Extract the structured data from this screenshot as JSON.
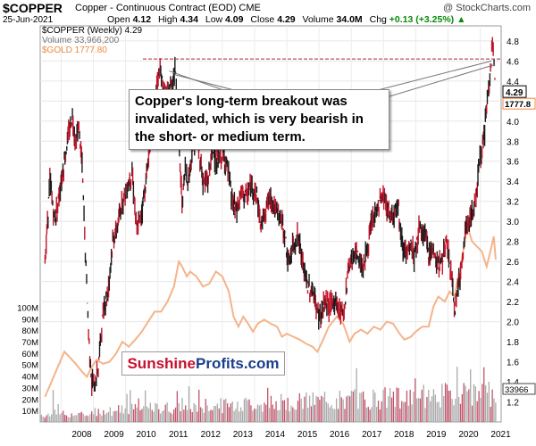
{
  "header": {
    "symbol": "$COPPER",
    "name": "Copper - Continuous Contract (EOD)",
    "exchange": "CME",
    "watermark": "@ StockCharts.com",
    "date": "25-Jun-2021",
    "open_label": "Open",
    "open": "4.12",
    "high_label": "High",
    "high": "4.34",
    "low_label": "Low",
    "low": "4.09",
    "close_label": "Close",
    "close": "4.29",
    "volume_label": "Volume",
    "volume": "34.0M",
    "chg_label": "Chg",
    "chg": "+0.13 (+3.25%)",
    "chg_arrow": "▲"
  },
  "legend": {
    "copper": "$COPPER (Weekly) 4.29",
    "volume": "Volume 33,966,200",
    "gold": "$GOLD 1777.80"
  },
  "annotation": "Copper's long-term breakout was invalidated, which is very bearish in the short- or medium term.",
  "logo": {
    "part1": "Sunshine",
    "part2": "Profits.com"
  },
  "colors": {
    "gold": "#f4b48a",
    "candle": "#1a1a1a",
    "candle_down": "#c0142a",
    "volume": "#aaaaaa",
    "volume_down": "#c2556a",
    "level": "#b0203a",
    "close_badge": "#000000",
    "gold_badge": "#f0873c"
  },
  "chart_data": {
    "type": "line",
    "title": "$COPPER Copper - Continuous Contract (EOD) CME",
    "x_ticks": [
      "2008",
      "2009",
      "2010",
      "2011",
      "2012",
      "2013",
      "2014",
      "2015",
      "2016",
      "2017",
      "2018",
      "2019",
      "2020",
      "2021"
    ],
    "y_ticks": [
      "2.0",
      "2.2",
      "2.4",
      "2.6",
      "2.8",
      "3.0",
      "3.2",
      "3.4",
      "3.6",
      "3.8",
      "4.0",
      "4.2",
      "4.4",
      "4.6",
      "4.8"
    ],
    "volume_ticks": [
      "10M",
      "20M",
      "30M",
      "40M",
      "50M",
      "60M",
      "70M",
      "80M",
      "90M",
      "100M"
    ],
    "lower_right_ticks": [
      "1.2",
      "1.4",
      "1.6",
      "1.8"
    ],
    "ylim": [
      1.0,
      4.95
    ],
    "volume_ylim": [
      0,
      105
    ],
    "resistance_level": 4.62,
    "last_copper_badge": "4.29",
    "last_gold_badge": "1777.8",
    "last_volume_badge": "33966",
    "series": [
      {
        "name": "$COPPER (Weekly)",
        "points": [
          [
            2007.5,
            2.6
          ],
          [
            2007.65,
            3.4
          ],
          [
            2007.8,
            3.0
          ],
          [
            2007.95,
            3.3
          ],
          [
            2008.1,
            3.6
          ],
          [
            2008.25,
            3.9
          ],
          [
            2008.35,
            4.05
          ],
          [
            2008.45,
            3.8
          ],
          [
            2008.55,
            3.95
          ],
          [
            2008.65,
            3.55
          ],
          [
            2008.75,
            2.7
          ],
          [
            2008.85,
            1.9
          ],
          [
            2008.95,
            1.4
          ],
          [
            2009.05,
            1.35
          ],
          [
            2009.15,
            1.55
          ],
          [
            2009.3,
            2.1
          ],
          [
            2009.45,
            2.3
          ],
          [
            2009.6,
            2.8
          ],
          [
            2009.75,
            2.95
          ],
          [
            2009.9,
            3.2
          ],
          [
            2010.05,
            3.35
          ],
          [
            2010.2,
            3.5
          ],
          [
            2010.35,
            2.9
          ],
          [
            2010.5,
            3.1
          ],
          [
            2010.65,
            3.45
          ],
          [
            2010.8,
            3.9
          ],
          [
            2010.95,
            4.3
          ],
          [
            2011.05,
            4.5
          ],
          [
            2011.15,
            4.35
          ],
          [
            2011.3,
            4.25
          ],
          [
            2011.45,
            4.4
          ],
          [
            2011.55,
            4.5
          ],
          [
            2011.65,
            3.8
          ],
          [
            2011.75,
            3.2
          ],
          [
            2011.85,
            3.5
          ],
          [
            2011.95,
            3.4
          ],
          [
            2012.1,
            3.8
          ],
          [
            2012.25,
            3.8
          ],
          [
            2012.4,
            3.4
          ],
          [
            2012.55,
            3.4
          ],
          [
            2012.7,
            3.75
          ],
          [
            2012.85,
            3.55
          ],
          [
            2013.0,
            3.7
          ],
          [
            2013.15,
            3.55
          ],
          [
            2013.3,
            3.2
          ],
          [
            2013.45,
            3.1
          ],
          [
            2013.6,
            3.3
          ],
          [
            2013.75,
            3.25
          ],
          [
            2013.9,
            3.35
          ],
          [
            2014.05,
            3.3
          ],
          [
            2014.2,
            2.95
          ],
          [
            2014.35,
            3.15
          ],
          [
            2014.5,
            3.25
          ],
          [
            2014.65,
            3.1
          ],
          [
            2014.8,
            3.05
          ],
          [
            2014.95,
            2.85
          ],
          [
            2015.05,
            2.55
          ],
          [
            2015.2,
            2.75
          ],
          [
            2015.35,
            2.85
          ],
          [
            2015.5,
            2.55
          ],
          [
            2015.65,
            2.35
          ],
          [
            2015.8,
            2.3
          ],
          [
            2015.95,
            2.1
          ],
          [
            2016.05,
            2.05
          ],
          [
            2016.2,
            2.2
          ],
          [
            2016.35,
            2.15
          ],
          [
            2016.5,
            2.2
          ],
          [
            2016.65,
            2.1
          ],
          [
            2016.8,
            2.15
          ],
          [
            2016.9,
            2.55
          ],
          [
            2017.05,
            2.65
          ],
          [
            2017.2,
            2.65
          ],
          [
            2017.35,
            2.55
          ],
          [
            2017.5,
            2.7
          ],
          [
            2017.65,
            3.0
          ],
          [
            2017.8,
            3.1
          ],
          [
            2017.95,
            3.25
          ],
          [
            2018.05,
            3.2
          ],
          [
            2018.2,
            3.05
          ],
          [
            2018.35,
            3.1
          ],
          [
            2018.45,
            3.2
          ],
          [
            2018.55,
            2.8
          ],
          [
            2018.7,
            2.65
          ],
          [
            2018.85,
            2.75
          ],
          [
            2018.95,
            2.65
          ],
          [
            2019.1,
            2.9
          ],
          [
            2019.25,
            2.9
          ],
          [
            2019.4,
            2.7
          ],
          [
            2019.55,
            2.7
          ],
          [
            2019.7,
            2.55
          ],
          [
            2019.85,
            2.65
          ],
          [
            2019.95,
            2.8
          ],
          [
            2020.05,
            2.6
          ],
          [
            2020.15,
            2.3
          ],
          [
            2020.22,
            2.1
          ],
          [
            2020.3,
            2.35
          ],
          [
            2020.45,
            2.6
          ],
          [
            2020.55,
            2.95
          ],
          [
            2020.7,
            3.05
          ],
          [
            2020.85,
            3.15
          ],
          [
            2020.95,
            3.55
          ],
          [
            2021.1,
            3.8
          ],
          [
            2021.2,
            4.1
          ],
          [
            2021.3,
            4.45
          ],
          [
            2021.38,
            4.75
          ],
          [
            2021.43,
            4.55
          ],
          [
            2021.48,
            4.29
          ]
        ]
      },
      {
        "name": "$GOLD",
        "points": [
          [
            2007.5,
            1.25
          ],
          [
            2007.7,
            1.4
          ],
          [
            2007.9,
            1.55
          ],
          [
            2008.1,
            1.7
          ],
          [
            2008.25,
            1.65
          ],
          [
            2008.45,
            1.58
          ],
          [
            2008.65,
            1.5
          ],
          [
            2008.8,
            1.45
          ],
          [
            2008.95,
            1.55
          ],
          [
            2009.1,
            1.62
          ],
          [
            2009.3,
            1.58
          ],
          [
            2009.5,
            1.6
          ],
          [
            2009.7,
            1.68
          ],
          [
            2009.9,
            1.8
          ],
          [
            2010.1,
            1.75
          ],
          [
            2010.3,
            1.82
          ],
          [
            2010.5,
            1.9
          ],
          [
            2010.7,
            2.0
          ],
          [
            2010.9,
            2.1
          ],
          [
            2011.1,
            2.1
          ],
          [
            2011.3,
            2.2
          ],
          [
            2011.5,
            2.35
          ],
          [
            2011.65,
            2.6
          ],
          [
            2011.75,
            2.55
          ],
          [
            2011.9,
            2.45
          ],
          [
            2012.0,
            2.5
          ],
          [
            2012.2,
            2.45
          ],
          [
            2012.4,
            2.35
          ],
          [
            2012.6,
            2.38
          ],
          [
            2012.8,
            2.5
          ],
          [
            2013.0,
            2.45
          ],
          [
            2013.2,
            2.3
          ],
          [
            2013.35,
            2.05
          ],
          [
            2013.5,
            1.95
          ],
          [
            2013.65,
            2.05
          ],
          [
            2013.8,
            1.98
          ],
          [
            2013.95,
            1.9
          ],
          [
            2014.1,
            1.98
          ],
          [
            2014.3,
            2.02
          ],
          [
            2014.5,
            1.98
          ],
          [
            2014.7,
            1.95
          ],
          [
            2014.85,
            1.85
          ],
          [
            2015.0,
            1.88
          ],
          [
            2015.2,
            1.85
          ],
          [
            2015.4,
            1.82
          ],
          [
            2015.6,
            1.78
          ],
          [
            2015.8,
            1.75
          ],
          [
            2015.95,
            1.7
          ],
          [
            2016.1,
            1.8
          ],
          [
            2016.3,
            1.95
          ],
          [
            2016.55,
            2.05
          ],
          [
            2016.75,
            1.98
          ],
          [
            2016.95,
            1.8
          ],
          [
            2017.1,
            1.88
          ],
          [
            2017.3,
            1.92
          ],
          [
            2017.5,
            1.88
          ],
          [
            2017.7,
            1.95
          ],
          [
            2017.9,
            1.92
          ],
          [
            2018.1,
            2.0
          ],
          [
            2018.3,
            1.98
          ],
          [
            2018.5,
            1.88
          ],
          [
            2018.65,
            1.82
          ],
          [
            2018.85,
            1.85
          ],
          [
            2019.0,
            1.9
          ],
          [
            2019.2,
            1.95
          ],
          [
            2019.4,
            1.95
          ],
          [
            2019.55,
            2.15
          ],
          [
            2019.7,
            2.25
          ],
          [
            2019.9,
            2.2
          ],
          [
            2020.05,
            2.3
          ],
          [
            2020.2,
            2.25
          ],
          [
            2020.35,
            2.5
          ],
          [
            2020.5,
            2.75
          ],
          [
            2020.6,
            2.95
          ],
          [
            2020.75,
            2.8
          ],
          [
            2020.9,
            2.75
          ],
          [
            2021.05,
            2.7
          ],
          [
            2021.2,
            2.55
          ],
          [
            2021.35,
            2.75
          ],
          [
            2021.42,
            2.85
          ],
          [
            2021.48,
            2.62
          ]
        ]
      }
    ]
  }
}
